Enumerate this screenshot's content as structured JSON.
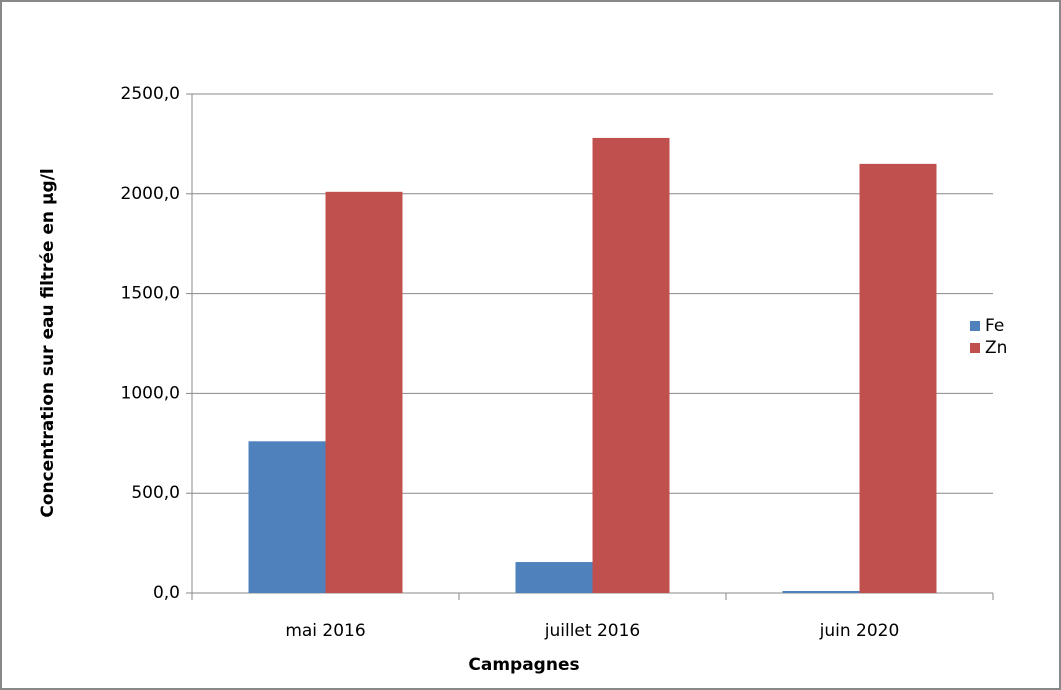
{
  "chart_data": {
    "type": "bar",
    "y_label": "Concentration sur eau filtrée en µg/l",
    "x_label": "Campagnes",
    "categories": [
      "mai 2016",
      "juillet 2016",
      "juin 2020"
    ],
    "series": [
      {
        "name": "Fe",
        "color": "#4f81bd",
        "values": [
          760,
          155,
          10
        ]
      },
      {
        "name": "Zn",
        "color": "#c0504d",
        "values": [
          2010,
          2280,
          2150
        ]
      }
    ],
    "ylim": [
      0,
      2500
    ],
    "yticks": [
      {
        "value": 0,
        "label": "0,0"
      },
      {
        "value": 500,
        "label": "500,0"
      },
      {
        "value": 1000,
        "label": "1000,0"
      },
      {
        "value": 1500,
        "label": "1500,0"
      },
      {
        "value": 2000,
        "label": "2000,0"
      },
      {
        "value": 2500,
        "label": "2500,0"
      }
    ],
    "grid": true,
    "legend": "right"
  }
}
